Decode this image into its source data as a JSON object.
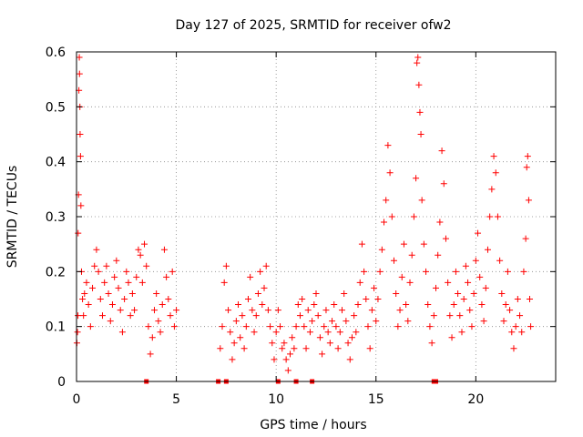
{
  "chart_data": {
    "type": "scatter",
    "title": "Day 127 of 2025, SRMTID for receiver ofw2",
    "xlabel": "GPS time / hours",
    "ylabel": "SRMTID / TECUs",
    "xlim": [
      0,
      24
    ],
    "ylim": [
      0,
      0.6
    ],
    "xticks": [
      0,
      5,
      10,
      15,
      20
    ],
    "xtick_labels": [
      "0",
      "5",
      "10",
      "15",
      "20"
    ],
    "yticks": [
      0,
      0.1,
      0.2,
      0.3,
      0.4,
      0.5,
      0.6
    ],
    "ytick_labels": [
      "0",
      "0.1",
      "0.2",
      "0.3",
      "0.4",
      "0.5",
      "0.6"
    ],
    "grid": true,
    "marker": "plus",
    "marker_color": "#ff0000",
    "gap_marker_hours": [
      3.5,
      7.1,
      7.5,
      10.1,
      11.0,
      11.8,
      17.9,
      18.0
    ],
    "series": [
      {
        "name": "SRMTID",
        "points": [
          [
            0.02,
            0.07
          ],
          [
            0.05,
            0.09
          ],
          [
            0.07,
            0.12
          ],
          [
            0.08,
            0.27
          ],
          [
            0.1,
            0.34
          ],
          [
            0.12,
            0.53
          ],
          [
            0.14,
            0.59
          ],
          [
            0.15,
            0.56
          ],
          [
            0.17,
            0.5
          ],
          [
            0.18,
            0.45
          ],
          [
            0.2,
            0.41
          ],
          [
            0.22,
            0.32
          ],
          [
            0.25,
            0.2
          ],
          [
            0.3,
            0.15
          ],
          [
            0.35,
            0.12
          ],
          [
            0.4,
            0.16
          ],
          [
            0.5,
            0.18
          ],
          [
            0.6,
            0.14
          ],
          [
            0.7,
            0.1
          ],
          [
            0.8,
            0.17
          ],
          [
            0.9,
            0.21
          ],
          [
            1.0,
            0.24
          ],
          [
            1.1,
            0.2
          ],
          [
            1.2,
            0.15
          ],
          [
            1.3,
            0.12
          ],
          [
            1.4,
            0.18
          ],
          [
            1.5,
            0.21
          ],
          [
            1.6,
            0.16
          ],
          [
            1.7,
            0.11
          ],
          [
            1.8,
            0.14
          ],
          [
            1.9,
            0.19
          ],
          [
            2.0,
            0.22
          ],
          [
            2.1,
            0.17
          ],
          [
            2.2,
            0.13
          ],
          [
            2.3,
            0.09
          ],
          [
            2.4,
            0.15
          ],
          [
            2.5,
            0.2
          ],
          [
            2.6,
            0.18
          ],
          [
            2.7,
            0.12
          ],
          [
            2.8,
            0.16
          ],
          [
            2.9,
            0.13
          ],
          [
            3.0,
            0.19
          ],
          [
            3.1,
            0.24
          ],
          [
            3.2,
            0.23
          ],
          [
            3.3,
            0.18
          ],
          [
            3.4,
            0.25
          ],
          [
            3.5,
            0.21
          ],
          [
            3.6,
            0.1
          ],
          [
            3.7,
            0.05
          ],
          [
            3.8,
            0.08
          ],
          [
            3.9,
            0.13
          ],
          [
            4.0,
            0.16
          ],
          [
            4.1,
            0.11
          ],
          [
            4.2,
            0.09
          ],
          [
            4.3,
            0.14
          ],
          [
            4.4,
            0.24
          ],
          [
            4.5,
            0.19
          ],
          [
            4.6,
            0.15
          ],
          [
            4.7,
            0.12
          ],
          [
            4.8,
            0.2
          ],
          [
            4.9,
            0.1
          ],
          [
            5.0,
            0.13
          ],
          [
            7.2,
            0.06
          ],
          [
            7.3,
            0.1
          ],
          [
            7.4,
            0.18
          ],
          [
            7.5,
            0.21
          ],
          [
            7.6,
            0.13
          ],
          [
            7.7,
            0.09
          ],
          [
            7.8,
            0.04
          ],
          [
            7.9,
            0.07
          ],
          [
            8.0,
            0.11
          ],
          [
            8.1,
            0.14
          ],
          [
            8.2,
            0.08
          ],
          [
            8.3,
            0.12
          ],
          [
            8.4,
            0.06
          ],
          [
            8.5,
            0.1
          ],
          [
            8.6,
            0.15
          ],
          [
            8.7,
            0.19
          ],
          [
            8.8,
            0.13
          ],
          [
            8.9,
            0.09
          ],
          [
            9.0,
            0.12
          ],
          [
            9.1,
            0.16
          ],
          [
            9.2,
            0.2
          ],
          [
            9.3,
            0.14
          ],
          [
            9.4,
            0.17
          ],
          [
            9.5,
            0.21
          ],
          [
            9.6,
            0.13
          ],
          [
            9.7,
            0.1
          ],
          [
            9.8,
            0.07
          ],
          [
            9.9,
            0.04
          ],
          [
            10.0,
            0.09
          ],
          [
            10.1,
            0.13
          ],
          [
            10.2,
            0.1
          ],
          [
            10.3,
            0.06
          ],
          [
            10.4,
            0.07
          ],
          [
            10.5,
            0.04
          ],
          [
            10.6,
            0.02
          ],
          [
            10.7,
            0.05
          ],
          [
            10.8,
            0.08
          ],
          [
            10.9,
            0.06
          ],
          [
            11.0,
            0.1
          ],
          [
            11.1,
            0.14
          ],
          [
            11.2,
            0.12
          ],
          [
            11.3,
            0.15
          ],
          [
            11.4,
            0.1
          ],
          [
            11.5,
            0.06
          ],
          [
            11.6,
            0.13
          ],
          [
            11.7,
            0.09
          ],
          [
            11.8,
            0.11
          ],
          [
            11.9,
            0.14
          ],
          [
            12.0,
            0.16
          ],
          [
            12.1,
            0.12
          ],
          [
            12.2,
            0.08
          ],
          [
            12.3,
            0.05
          ],
          [
            12.4,
            0.1
          ],
          [
            12.5,
            0.13
          ],
          [
            12.6,
            0.09
          ],
          [
            12.7,
            0.07
          ],
          [
            12.8,
            0.11
          ],
          [
            12.9,
            0.14
          ],
          [
            13.0,
            0.1
          ],
          [
            13.1,
            0.06
          ],
          [
            13.2,
            0.09
          ],
          [
            13.3,
            0.13
          ],
          [
            13.4,
            0.16
          ],
          [
            13.5,
            0.11
          ],
          [
            13.6,
            0.07
          ],
          [
            13.7,
            0.04
          ],
          [
            13.8,
            0.08
          ],
          [
            13.9,
            0.12
          ],
          [
            14.0,
            0.09
          ],
          [
            14.1,
            0.14
          ],
          [
            14.2,
            0.18
          ],
          [
            14.3,
            0.25
          ],
          [
            14.4,
            0.2
          ],
          [
            14.5,
            0.15
          ],
          [
            14.6,
            0.1
          ],
          [
            14.7,
            0.06
          ],
          [
            14.8,
            0.13
          ],
          [
            14.9,
            0.17
          ],
          [
            15.0,
            0.11
          ],
          [
            15.1,
            0.15
          ],
          [
            15.2,
            0.2
          ],
          [
            15.3,
            0.24
          ],
          [
            15.4,
            0.29
          ],
          [
            15.5,
            0.33
          ],
          [
            15.6,
            0.43
          ],
          [
            15.7,
            0.38
          ],
          [
            15.8,
            0.3
          ],
          [
            15.9,
            0.22
          ],
          [
            16.0,
            0.16
          ],
          [
            16.1,
            0.1
          ],
          [
            16.2,
            0.13
          ],
          [
            16.3,
            0.19
          ],
          [
            16.4,
            0.25
          ],
          [
            16.5,
            0.14
          ],
          [
            16.6,
            0.11
          ],
          [
            16.7,
            0.18
          ],
          [
            16.8,
            0.23
          ],
          [
            16.9,
            0.3
          ],
          [
            17.0,
            0.37
          ],
          [
            17.05,
            0.58
          ],
          [
            17.1,
            0.59
          ],
          [
            17.15,
            0.54
          ],
          [
            17.2,
            0.49
          ],
          [
            17.25,
            0.45
          ],
          [
            17.3,
            0.33
          ],
          [
            17.4,
            0.25
          ],
          [
            17.5,
            0.2
          ],
          [
            17.6,
            0.14
          ],
          [
            17.7,
            0.1
          ],
          [
            17.8,
            0.07
          ],
          [
            17.9,
            0.12
          ],
          [
            18.0,
            0.17
          ],
          [
            18.1,
            0.23
          ],
          [
            18.2,
            0.29
          ],
          [
            18.3,
            0.42
          ],
          [
            18.4,
            0.36
          ],
          [
            18.5,
            0.26
          ],
          [
            18.6,
            0.18
          ],
          [
            18.7,
            0.12
          ],
          [
            18.8,
            0.08
          ],
          [
            18.9,
            0.14
          ],
          [
            19.0,
            0.2
          ],
          [
            19.1,
            0.16
          ],
          [
            19.2,
            0.12
          ],
          [
            19.3,
            0.09
          ],
          [
            19.4,
            0.15
          ],
          [
            19.5,
            0.21
          ],
          [
            19.6,
            0.18
          ],
          [
            19.7,
            0.13
          ],
          [
            19.8,
            0.1
          ],
          [
            19.9,
            0.16
          ],
          [
            20.0,
            0.22
          ],
          [
            20.1,
            0.27
          ],
          [
            20.2,
            0.19
          ],
          [
            20.3,
            0.14
          ],
          [
            20.4,
            0.11
          ],
          [
            20.5,
            0.17
          ],
          [
            20.6,
            0.24
          ],
          [
            20.7,
            0.3
          ],
          [
            20.8,
            0.35
          ],
          [
            20.9,
            0.41
          ],
          [
            21.0,
            0.38
          ],
          [
            21.1,
            0.3
          ],
          [
            21.2,
            0.22
          ],
          [
            21.3,
            0.16
          ],
          [
            21.4,
            0.11
          ],
          [
            21.5,
            0.14
          ],
          [
            21.6,
            0.2
          ],
          [
            21.7,
            0.13
          ],
          [
            21.8,
            0.09
          ],
          [
            21.9,
            0.06
          ],
          [
            22.0,
            0.1
          ],
          [
            22.1,
            0.15
          ],
          [
            22.2,
            0.12
          ],
          [
            22.3,
            0.09
          ],
          [
            22.4,
            0.2
          ],
          [
            22.5,
            0.26
          ],
          [
            22.55,
            0.39
          ],
          [
            22.6,
            0.41
          ],
          [
            22.65,
            0.33
          ],
          [
            22.7,
            0.15
          ],
          [
            22.75,
            0.1
          ]
        ]
      }
    ]
  }
}
